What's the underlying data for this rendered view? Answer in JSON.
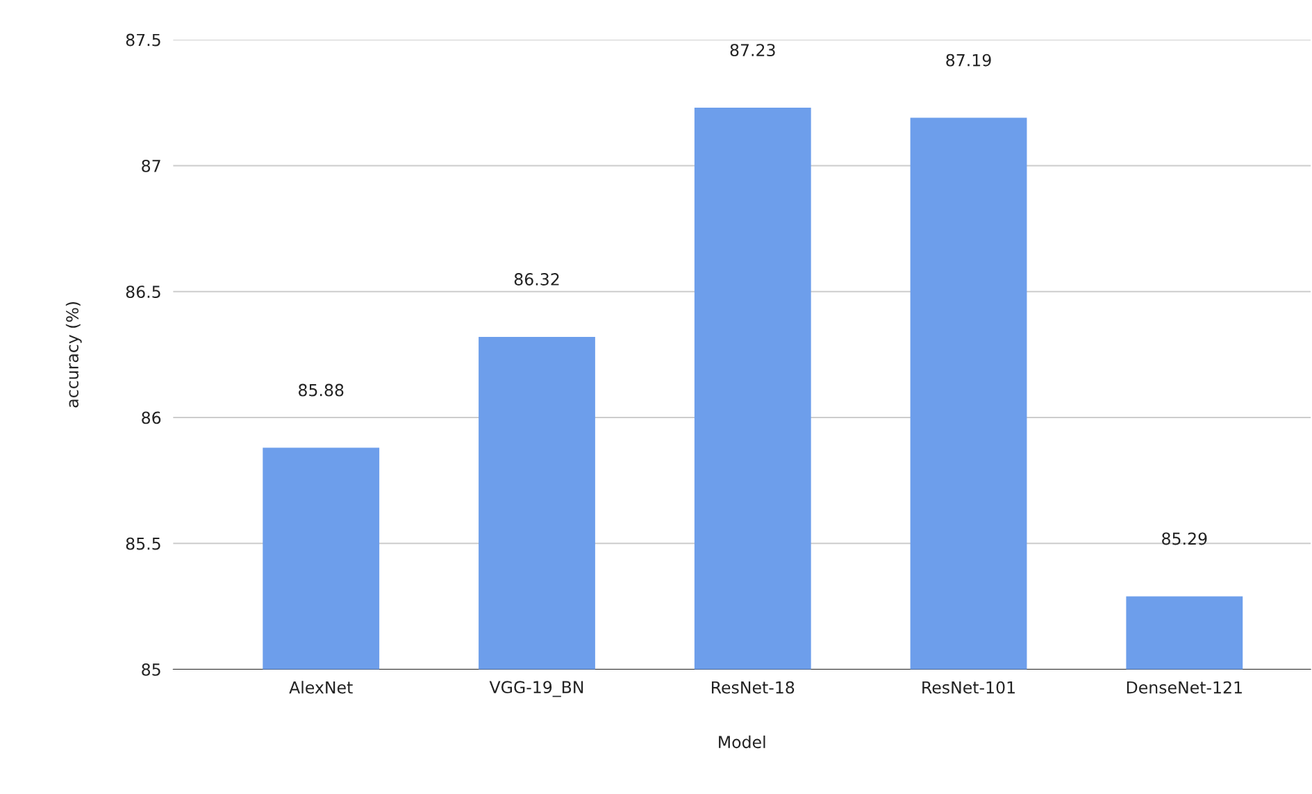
{
  "chart_data": {
    "type": "bar",
    "xlabel": "Model",
    "ylabel": "accuracy (%)",
    "categories": [
      "AlexNet",
      "VGG-19_BN",
      "ResNet-18",
      "ResNet-101",
      "DenseNet-121"
    ],
    "values": [
      85.88,
      86.32,
      87.23,
      87.19,
      85.29
    ],
    "color": "#6d9eeb",
    "ylim": [
      85,
      87.5
    ],
    "yticks": [
      85,
      85.5,
      86,
      86.5,
      87,
      87.5
    ],
    "grid": "y",
    "data_labels": true
  }
}
